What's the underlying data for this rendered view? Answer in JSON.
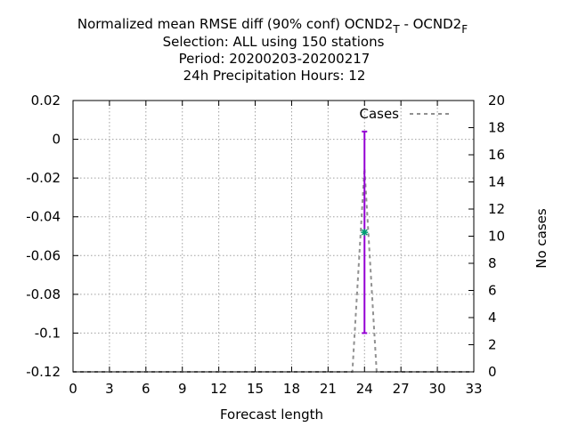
{
  "chart_data": {
    "type": "line",
    "title": {
      "line1_main": "Normalized mean RMSE diff (90% conf) OCND2",
      "line1_sub_t": "T",
      "line1_mid": " - OCND2",
      "line1_sub_f": "F",
      "line2": "Selection: ALL using   150 stations",
      "line3": "Period: 20200203-20200217",
      "line4": "24h Precipitation   Hours:  12"
    },
    "xlabel": "Forecast length",
    "ylabel_right": "No cases",
    "xlim": [
      0,
      33
    ],
    "ylim_left": [
      -0.12,
      0.02
    ],
    "ylim_right": [
      0,
      20
    ],
    "xticks": [
      0,
      3,
      6,
      9,
      12,
      15,
      18,
      21,
      24,
      27,
      30,
      33
    ],
    "yticks_left": [
      0.02,
      0,
      -0.02,
      -0.04,
      -0.06,
      -0.08,
      -0.1,
      -0.12
    ],
    "yticks_left_labels": [
      "0.02",
      "0",
      "-0.02",
      "-0.04",
      "-0.06",
      "-0.08",
      "-0.1",
      "-0.12"
    ],
    "yticks_right": [
      20,
      18,
      16,
      14,
      12,
      10,
      8,
      6,
      4,
      2,
      0
    ],
    "grid": true,
    "legend": {
      "position": "top-right",
      "entries": [
        "Cases"
      ]
    },
    "errorbar": {
      "x": 24,
      "y": -0.048,
      "low": -0.1,
      "high": 0.004,
      "color": "#9400d3"
    },
    "point_marker_color": "#009e73",
    "cases_series": {
      "name": "Cases",
      "color": "#909090",
      "x": [
        0,
        3,
        6,
        9,
        12,
        15,
        18,
        21,
        23,
        24,
        25,
        27,
        30,
        33
      ],
      "values": [
        0,
        0,
        0,
        0,
        0,
        0,
        0,
        0,
        0,
        15,
        0,
        0,
        0,
        0
      ]
    }
  }
}
